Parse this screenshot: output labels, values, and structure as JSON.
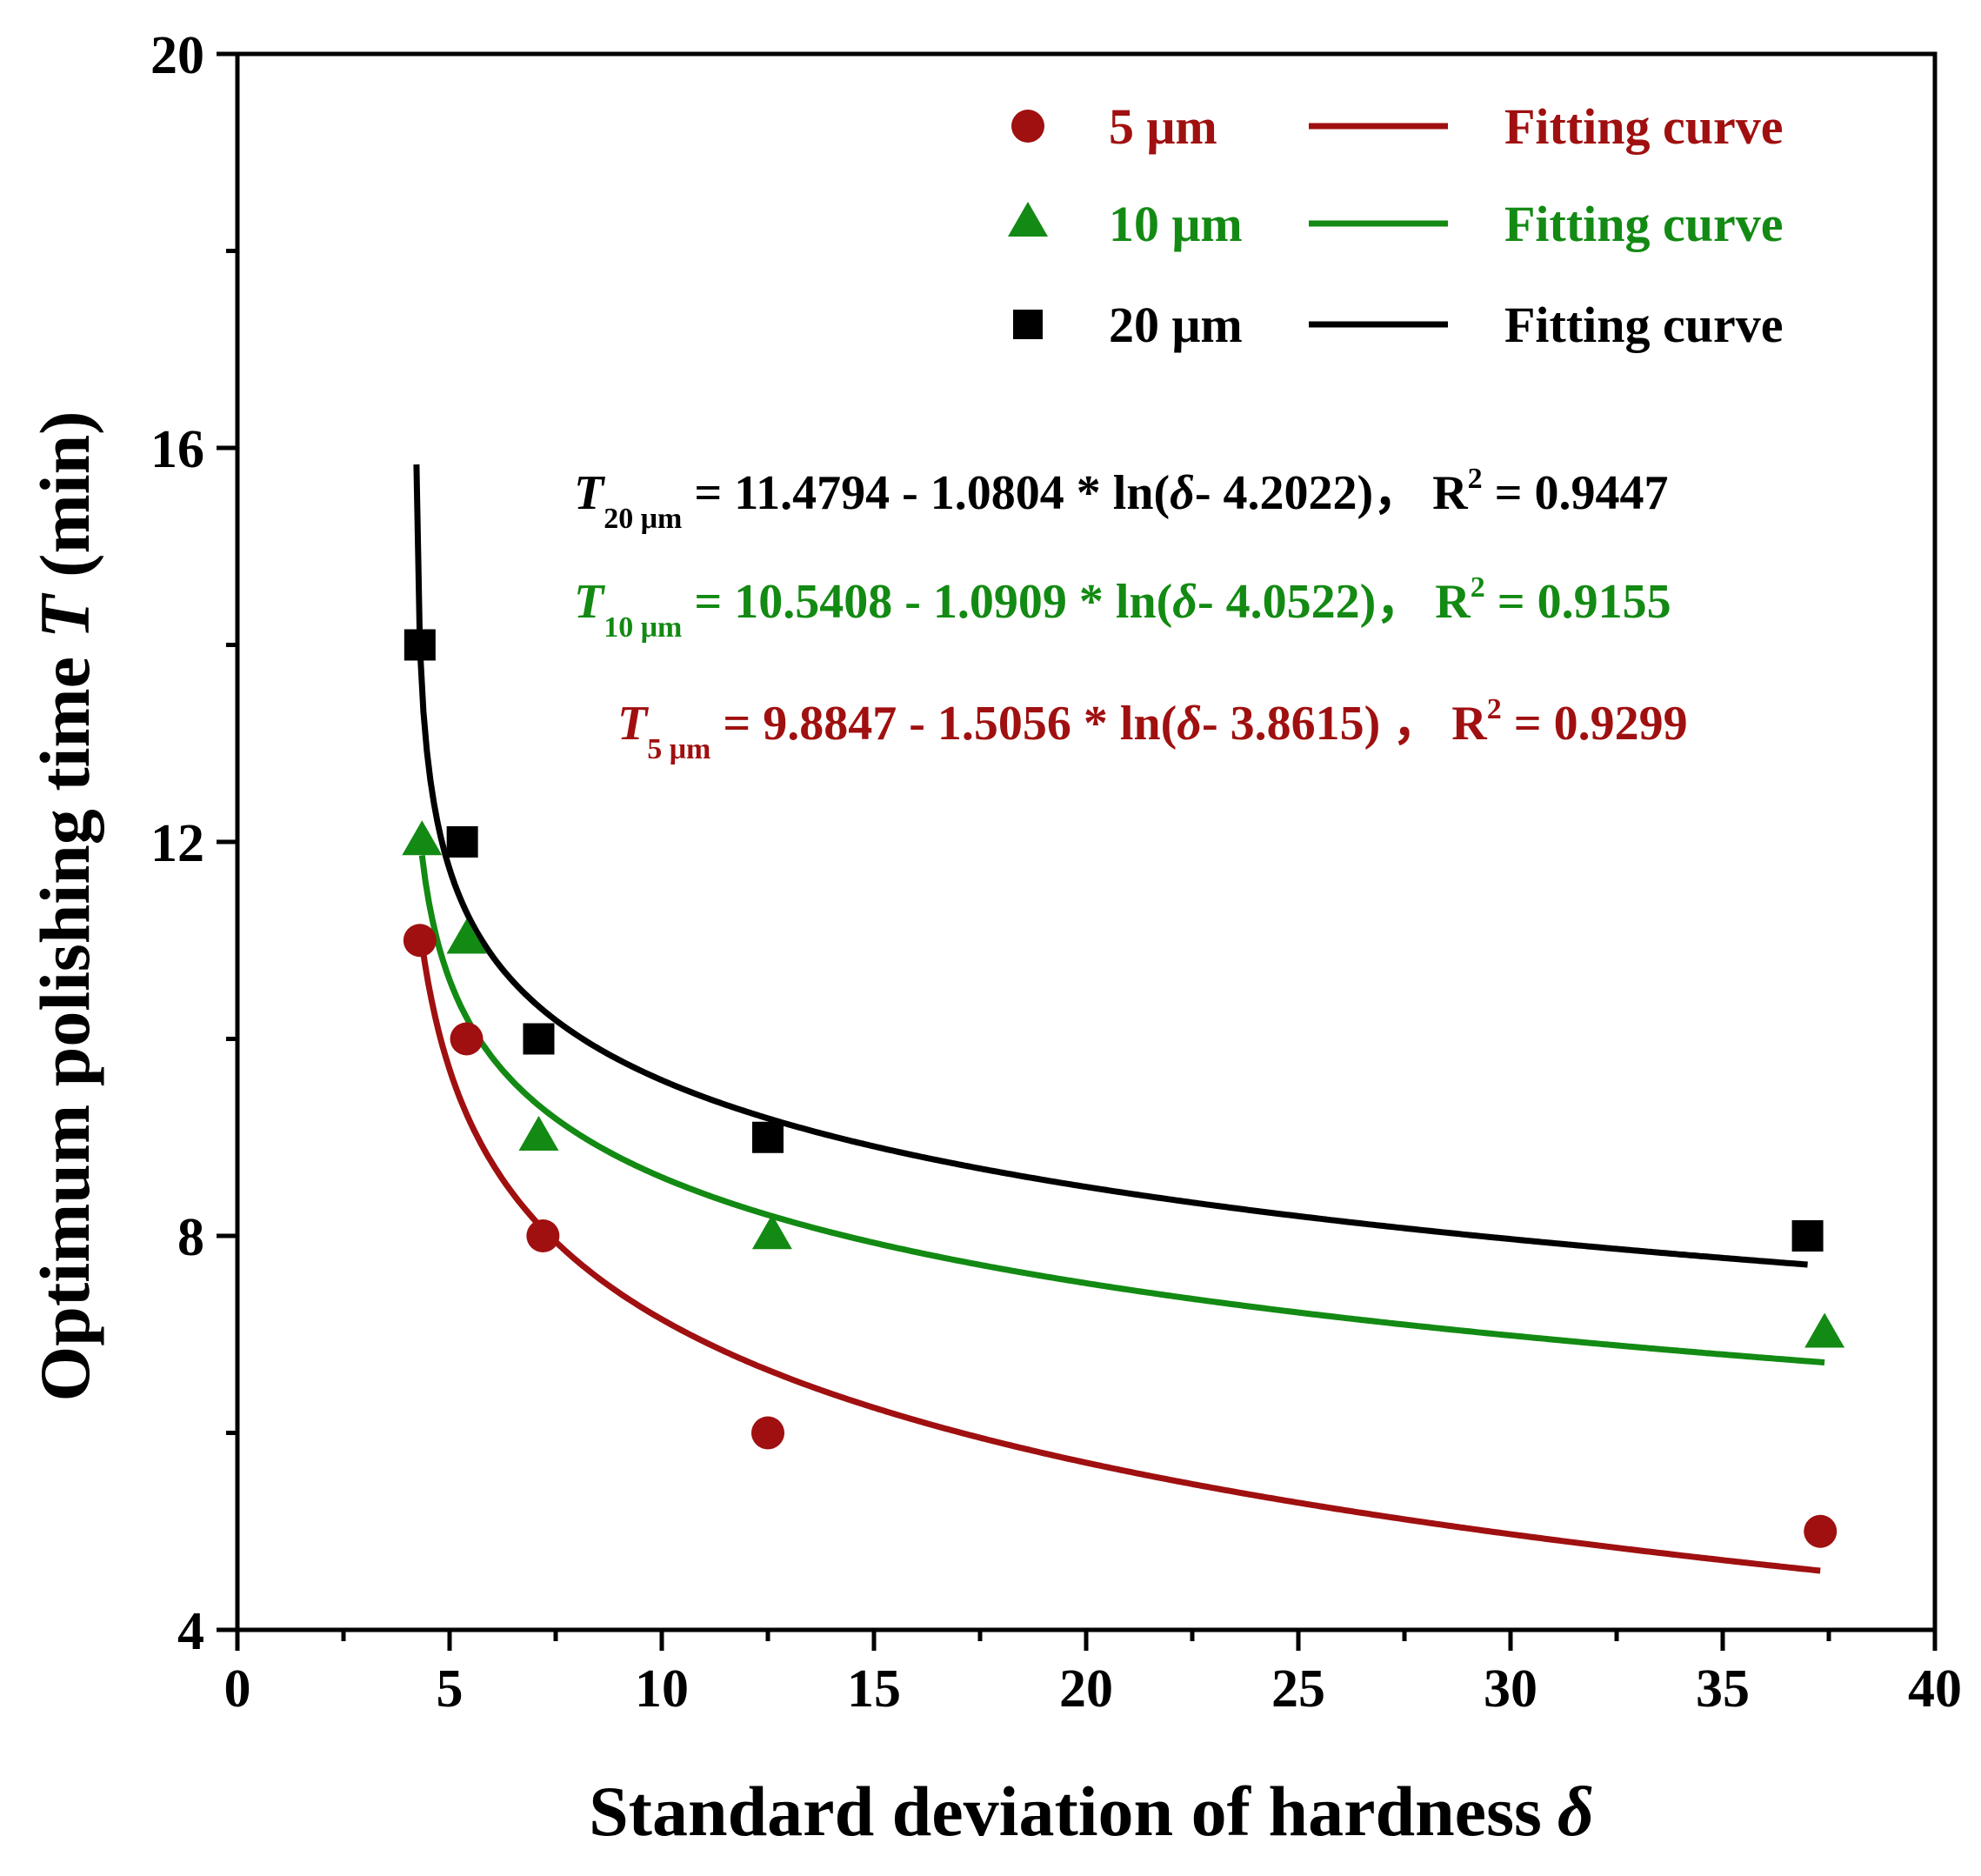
{
  "chart_data": {
    "type": "scatter",
    "xlabel": "Standard deviation of hardness",
    "xlabel_symbol": "δ",
    "ylabel_prefix": "Optimum polishing time ",
    "ylabel_symbol": "T",
    "ylabel_suffix": " (min)",
    "xlim": [
      0,
      40
    ],
    "ylim": [
      4,
      20
    ],
    "x_ticks": [
      0,
      5,
      10,
      15,
      20,
      25,
      30,
      35,
      40
    ],
    "y_ticks": [
      4,
      8,
      12,
      16,
      20
    ],
    "x_tick_labels": [
      "0",
      "5",
      "10",
      "15",
      "20",
      "25",
      "30",
      "35",
      "40"
    ],
    "y_tick_labels": [
      "4",
      "8",
      "12",
      "16",
      "20"
    ],
    "legend_position": "top-right",
    "series": [
      {
        "name": "5 μm",
        "marker": "circle",
        "color": "#a01010",
        "x": [
          4.3,
          5.4,
          7.2,
          12.5,
          37.3
        ],
        "y": [
          11.0,
          10.0,
          8.0,
          6.0,
          5.0
        ],
        "fit": {
          "label": "Fitting curve",
          "a": 9.8847,
          "b": 1.5056,
          "c": 3.8615,
          "x_range": [
            4.33,
            37.3
          ]
        }
      },
      {
        "name": "10 μm",
        "marker": "triangle",
        "color": "#138a13",
        "x": [
          4.35,
          5.4,
          7.1,
          12.6,
          37.4
        ],
        "y": [
          12.0,
          11.0,
          9.0,
          8.0,
          7.0
        ],
        "fit": {
          "label": "Fitting curve",
          "a": 10.5408,
          "b": 1.0909,
          "c": 4.0522,
          "x_range": [
            4.35,
            37.4
          ]
        }
      },
      {
        "name": "20 μm",
        "marker": "square",
        "color": "#000000",
        "x": [
          4.3,
          5.3,
          7.1,
          12.5,
          37.0
        ],
        "y": [
          14.0,
          12.0,
          10.0,
          9.0,
          8.0
        ],
        "fit": {
          "label": "Fitting curve",
          "a": 11.4794,
          "b": 1.0804,
          "c": 4.2022,
          "x_range": [
            4.22,
            37.0
          ]
        }
      }
    ],
    "equations": [
      {
        "lhs": "T",
        "sub": "20 μm",
        "rhs": " = 11.4794 - 1.0804 * ln(",
        "delta": "δ",
        "tail": "- 4.2022)，",
        "r2_label": "R",
        "r2_sup": "2",
        "r2_value": " = 0.9447",
        "color": "#000000"
      },
      {
        "lhs": "T",
        "sub": "10 μm",
        "rhs": " = 10.5408 - 1.0909 * ln(",
        "delta": "δ",
        "tail": "- 4.0522)，",
        "r2_label": "R",
        "r2_sup": "2",
        "r2_value": " = 0.9155",
        "color": "#138a13"
      },
      {
        "lhs": "T",
        "sub": "5 μm",
        "rhs": " = 9.8847 - 1.5056 * ln(",
        "delta": "δ",
        "tail": "- 3.8615) ，",
        "r2_label": "R",
        "r2_sup": "2",
        "r2_value": " = 0.9299",
        "color": "#a01010"
      }
    ]
  }
}
